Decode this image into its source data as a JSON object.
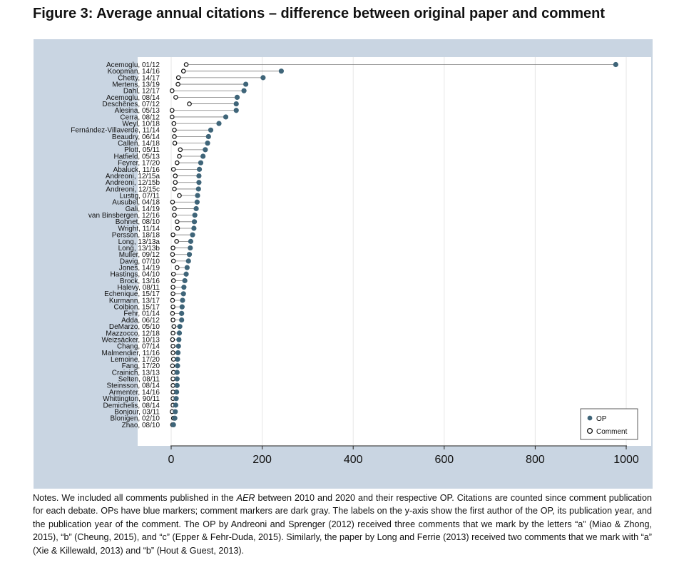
{
  "title": "Figure 3: Average annual citations – difference between original paper and comment",
  "chart_data": {
    "type": "dot",
    "title": "Figure 3: Average annual citations – difference between original paper and comment",
    "xlabel": "",
    "ylabel": "",
    "xlim": [
      0,
      1000
    ],
    "xticks": [
      0,
      200,
      400,
      600,
      800,
      1000
    ],
    "grid": "vertical",
    "legend_position": "bottom-right",
    "series": [
      {
        "name": "OP",
        "color": "#3f6579",
        "marker": "filled-circle"
      },
      {
        "name": "Comment",
        "color": "#ffffff",
        "marker": "hollow-circle"
      }
    ],
    "categories": [
      "Acemoglu, 01/12",
      "Koopman, 14/16",
      "Chetty, 14/17",
      "Mertens, 13/19",
      "Dahl, 12/17",
      "Acemoglu, 08/14",
      "Deschênes, 07/12",
      "Alesina, 05/13",
      "Cerra, 08/12",
      "Weyl, 10/18",
      "Fernández-Villaverde, 11/14",
      "Beaudry, 06/14",
      "Callen, 14/18",
      "Plott, 05/11",
      "Hatfield, 05/13",
      "Feyrer, 17/20",
      "Abaluck, 11/16",
      "Andreoni, 12/15a",
      "Andreoni, 12/15b",
      "Andreoni, 12/15c",
      "Lustig, 07/11",
      "Ausubel, 04/18",
      "Gali, 14/19",
      "van Binsbergen, 12/16",
      "Bohnet, 08/10",
      "Wright, 11/14",
      "Persson, 18/18",
      "Long, 13/13a",
      "Long, 13/13b",
      "Muller, 09/12",
      "Davig, 07/10",
      "Jones, 14/19",
      "Hastings, 04/10",
      "Brock, 13/16",
      "Halevy, 08/11",
      "Echenique, 15/17",
      "Kurmann, 13/17",
      "Coibion, 15/17",
      "Fehr, 01/14",
      "Adda, 06/12",
      "DeMarzo, 05/10",
      "Mazzocco, 12/18",
      "Weizsäcker, 10/13",
      "Chang, 07/14",
      "Malmendier, 11/16",
      "Lemoine, 17/20",
      "Fang, 17/20",
      "Crainich, 13/13",
      "Selten, 08/11",
      "Steinsson, 08/14",
      "Armenter, 14/16",
      "Whittington, 90/11",
      "Demichelis, 08/14",
      "Bonjour, 03/11",
      "Blonigen, 02/10",
      "Zhao, 08/10"
    ],
    "op_values": [
      977,
      242,
      202,
      164,
      160,
      145,
      143,
      143,
      120,
      105,
      87,
      82,
      80,
      75,
      70,
      65,
      62,
      61,
      61,
      60,
      58,
      57,
      55,
      52,
      51,
      50,
      47,
      43,
      42,
      40,
      38,
      35,
      33,
      30,
      28,
      27,
      25,
      24,
      23,
      23,
      19,
      18,
      17,
      16,
      15,
      14,
      14,
      13,
      13,
      13,
      12,
      11,
      10,
      9,
      8,
      5
    ],
    "comment_values": [
      33,
      27,
      16,
      15,
      2,
      10,
      40,
      2,
      2,
      6,
      7,
      7,
      8,
      20,
      18,
      13,
      5,
      9,
      9,
      7,
      18,
      3,
      7,
      7,
      13,
      14,
      4,
      12,
      4,
      3,
      5,
      13,
      5,
      5,
      4,
      4,
      3,
      4,
      3,
      4,
      6,
      4,
      3,
      4,
      4,
      5,
      3,
      5,
      4,
      4,
      4,
      4,
      4,
      2,
      5,
      3
    ]
  },
  "legend": {
    "op_label": "OP",
    "comment_label": "Comment"
  },
  "notes": {
    "p1": "Notes. We included all comments published in the ",
    "journal": "AER",
    "p2": " between 2010 and 2020 and their respective OP. Citations are counted since comment publication for each debate. OPs have blue markers; comment markers are dark gray. The labels on the y-axis show the first author of the OP, its publication year, and the publication year of the comment. The OP by Andreoni and Sprenger (2012) received three comments that we mark by the letters “a” (Miao & Zhong, 2015), “b” (Cheung, 2015), and “c” (Epper & Fehr-Duda, 2015). Similarly, the paper by Long and Ferrie (2013) received two comments that we mark with “a” (Xie & Killewald, 2013) and “b” (Hout & Guest, 2013)."
  }
}
